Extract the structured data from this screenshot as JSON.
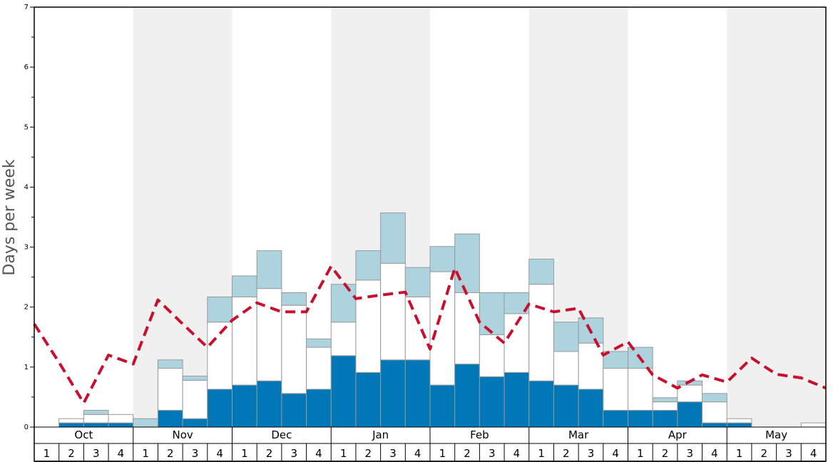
{
  "chart_data": {
    "type": "bar",
    "stacked": true,
    "ylabel": "Days per week",
    "ylim": [
      0,
      7
    ],
    "yticks": [
      "0",
      "1",
      "2",
      "3",
      "4",
      "5",
      "6",
      "7"
    ],
    "months": [
      "Oct",
      "Nov",
      "Dec",
      "Jan",
      "Feb",
      "Mar",
      "Apr",
      "May"
    ],
    "week_labels": [
      "1",
      "2",
      "3",
      "4"
    ],
    "shaded_months": [
      "Nov",
      "Jan",
      "Mar",
      "May"
    ],
    "colors": {
      "dark": "#0077b6",
      "white": "#ffffff",
      "light": "#add3df",
      "line": "#c8102e",
      "shade": "#f0f0f0",
      "bar_edge": "#999999"
    },
    "series": [
      {
        "name": "dark",
        "values": [
          0,
          0.07,
          0.07,
          0.07,
          0,
          0.28,
          0.14,
          0.63,
          0.7,
          0.77,
          0.56,
          0.63,
          1.19,
          0.91,
          1.12,
          1.12,
          0.7,
          1.05,
          0.84,
          0.91,
          0.77,
          0.7,
          0.63,
          0.28,
          0.28,
          0.28,
          0.42,
          0.07,
          0.07,
          0,
          0,
          0
        ]
      },
      {
        "name": "white",
        "values": [
          0,
          0.07,
          0.14,
          0.14,
          0,
          0.7,
          0.64,
          1.12,
          1.47,
          1.54,
          1.47,
          0.7,
          0.56,
          1.54,
          1.61,
          1.05,
          1.89,
          1.19,
          0.7,
          0.98,
          1.61,
          0.56,
          0.77,
          0.7,
          0.7,
          0.14,
          0.28,
          0.35,
          0.07,
          0,
          0,
          0.07
        ]
      },
      {
        "name": "light",
        "values": [
          0,
          0,
          0.07,
          0,
          0.14,
          0.14,
          0.07,
          0.42,
          0.35,
          0.63,
          0.21,
          0.14,
          0.63,
          0.49,
          0.84,
          0.49,
          0.42,
          0.98,
          0.7,
          0.35,
          0.42,
          0.49,
          0.42,
          0.28,
          0.35,
          0.07,
          0.07,
          0.14,
          0,
          0,
          0,
          0
        ]
      }
    ],
    "line": {
      "name": "average",
      "style": "dashed",
      "values": [
        1.72,
        1.08,
        0.4,
        1.2,
        1.05,
        2.12,
        1.72,
        1.33,
        1.78,
        2.07,
        1.92,
        1.92,
        2.68,
        2.14,
        2.2,
        2.25,
        1.3,
        2.65,
        1.75,
        1.4,
        2.05,
        1.92,
        1.98,
        1.2,
        1.42,
        0.87,
        0.65,
        0.87,
        0.75,
        1.15,
        0.88,
        0.82,
        0.65
      ]
    }
  }
}
